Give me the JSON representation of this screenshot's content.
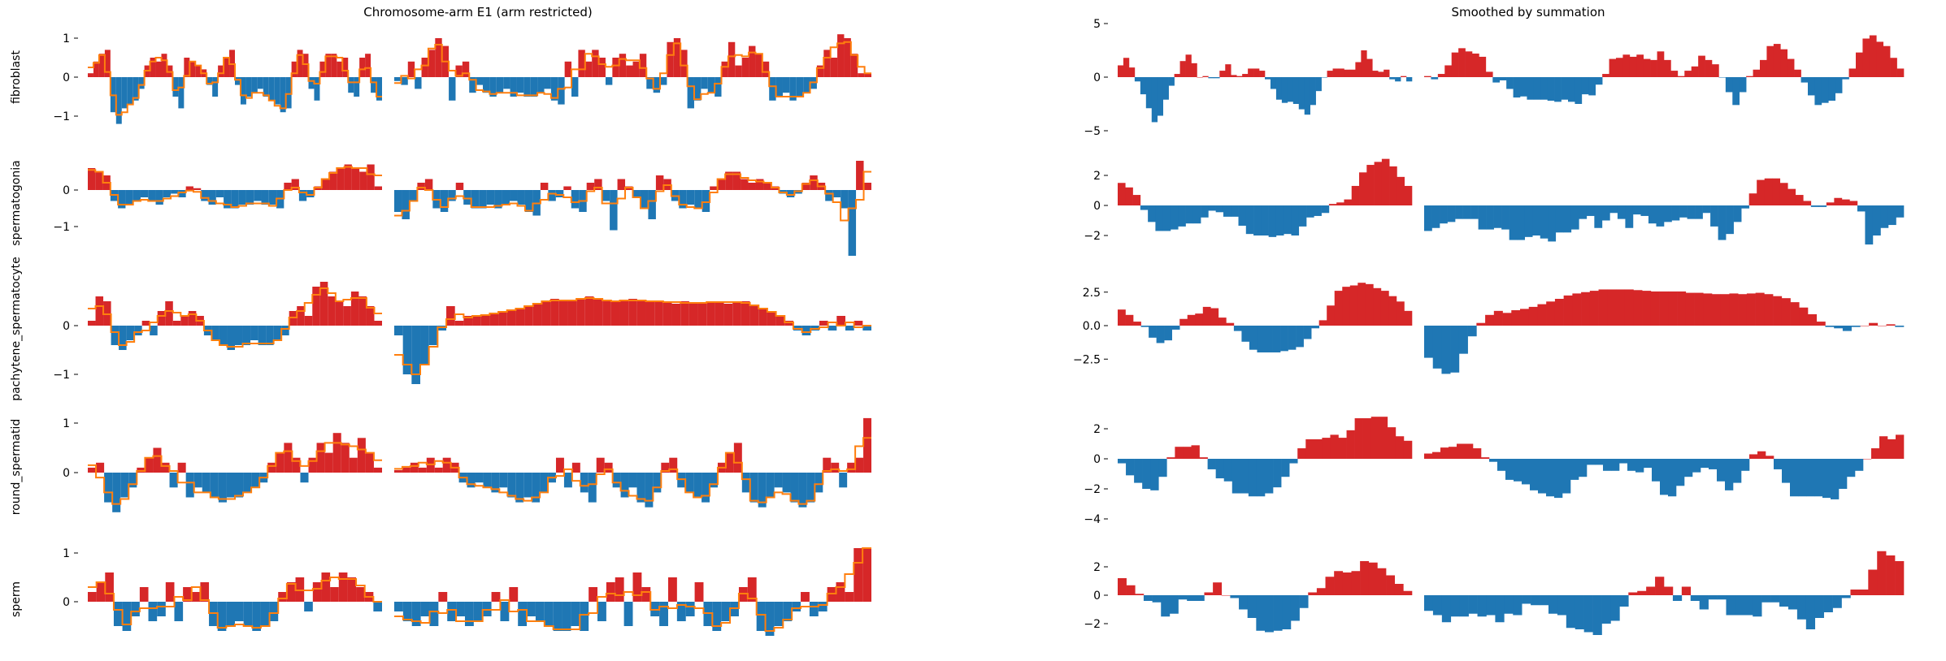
{
  "chart_data": {
    "type": "bar",
    "colors": {
      "positive": "#d62728",
      "negative": "#1f77b4",
      "rolling_mean": "#ff7f0e"
    },
    "panels": [
      {
        "title": "Chromosome-arm E1 (arm restricted)",
        "column": "left"
      },
      {
        "title": "Smoothed by summation",
        "column": "right",
        "smoothing_window": 5
      }
    ],
    "rows": [
      {
        "ylabel": "fibroblast",
        "left_ticks": [
          {
            "v": 1,
            "label": "1"
          },
          {
            "v": 0,
            "label": "0"
          },
          {
            "v": -1,
            "label": "−1"
          }
        ],
        "right_ticks": [
          {
            "v": 5,
            "label": "5"
          },
          {
            "v": 0,
            "label": "0"
          },
          {
            "v": -5,
            "label": "−5"
          }
        ],
        "arms": [
          [
            0.1,
            0.4,
            0.6,
            0.7,
            -0.9,
            -1.2,
            -0.8,
            -0.7,
            -0.6,
            -0.3,
            0.3,
            0.5,
            0.4,
            0.6,
            0.3,
            -0.5,
            -0.8,
            0.5,
            0.4,
            0.3,
            0.2,
            -0.2,
            -0.5,
            0.3,
            0.5,
            0.7,
            -0.2,
            -0.7,
            -0.5,
            -0.4,
            -0.3,
            -0.5,
            -0.6,
            -0.7,
            -0.9,
            -0.8,
            0.4,
            0.7,
            0.6,
            -0.3,
            -0.6,
            0.4,
            0.6,
            0.6,
            0.4,
            0.5,
            -0.4,
            -0.5,
            0.5,
            0.6,
            -0.4,
            -0.6
          ],
          [
            -0.1,
            -0.2,
            0.4,
            -0.3,
            0.5,
            0.7,
            1.0,
            0.8,
            -0.6,
            0.3,
            0.4,
            -0.4,
            -0.2,
            -0.4,
            -0.5,
            -0.4,
            -0.3,
            -0.5,
            -0.4,
            -0.5,
            -0.5,
            -0.4,
            -0.3,
            -0.6,
            -0.7,
            0.4,
            -0.5,
            0.7,
            0.4,
            0.7,
            0.5,
            -0.2,
            0.5,
            0.6,
            0.3,
            0.4,
            0.6,
            -0.3,
            -0.4,
            -0.2,
            0.9,
            1.0,
            0.7,
            -0.8,
            -0.6,
            -0.3,
            -0.4,
            -0.5,
            0.4,
            0.9,
            0.3,
            0.5,
            0.8,
            0.6,
            0.4,
            -0.6,
            -0.5,
            -0.4,
            -0.6,
            -0.5,
            -0.4,
            -0.3,
            0.3,
            0.7,
            0.5,
            1.1,
            1.0,
            0.6,
            0.1,
            0.1
          ]
        ]
      },
      {
        "ylabel": "spermatogonia",
        "left_ticks": [
          {
            "v": 0,
            "label": "0"
          },
          {
            "v": -1,
            "label": "−1"
          }
        ],
        "right_ticks": [
          {
            "v": 2,
            "label": "2"
          },
          {
            "v": 0,
            "label": "0"
          },
          {
            "v": -2,
            "label": "−2"
          }
        ],
        "arms": [
          [
            0.6,
            0.5,
            0.4,
            -0.3,
            -0.5,
            -0.4,
            -0.3,
            -0.2,
            -0.3,
            -0.4,
            -0.2,
            -0.1,
            -0.2,
            0.1,
            0.05,
            -0.3,
            -0.4,
            -0.2,
            -0.5,
            -0.5,
            -0.4,
            -0.4,
            -0.3,
            -0.4,
            -0.4,
            -0.5,
            0.2,
            0.3,
            -0.3,
            -0.2,
            0.1,
            0.3,
            0.5,
            0.6,
            0.7,
            0.6,
            0.5,
            0.7,
            0.1
          ],
          [
            -0.6,
            -0.8,
            -0.3,
            0.2,
            0.3,
            -0.5,
            -0.6,
            -0.3,
            0.2,
            -0.4,
            -0.5,
            -0.5,
            -0.4,
            -0.5,
            -0.4,
            -0.3,
            -0.4,
            -0.6,
            -0.7,
            0.2,
            -0.3,
            -0.2,
            0.1,
            -0.5,
            -0.6,
            0.2,
            0.3,
            -0.3,
            -1.1,
            0.3,
            0.1,
            -0.2,
            -0.5,
            -0.8,
            0.4,
            0.3,
            -0.3,
            -0.5,
            -0.4,
            -0.5,
            -0.6,
            0.1,
            0.3,
            0.5,
            0.5,
            0.3,
            0.2,
            0.3,
            0.2,
            0.1,
            -0.1,
            -0.2,
            -0.1,
            0.2,
            0.4,
            0.2,
            -0.3,
            -0.2,
            -0.5,
            -1.8,
            0.8,
            0.2
          ]
        ]
      },
      {
        "ylabel": "pachytene_spermatocyte",
        "left_ticks": [
          {
            "v": 0,
            "label": "0"
          },
          {
            "v": -1,
            "label": "−1"
          }
        ],
        "right_ticks": [
          {
            "v": 2.5,
            "label": "2.5"
          },
          {
            "v": 0,
            "label": "0.0"
          },
          {
            "v": -2.5,
            "label": "−2.5"
          }
        ],
        "arms": [
          [
            0.1,
            0.6,
            0.5,
            -0.4,
            -0.5,
            -0.3,
            -0.2,
            0.1,
            -0.2,
            0.3,
            0.5,
            0.1,
            0.2,
            0.3,
            0.2,
            -0.2,
            -0.3,
            -0.4,
            -0.5,
            -0.4,
            -0.4,
            -0.3,
            -0.4,
            -0.4,
            -0.3,
            -0.2,
            0.3,
            0.4,
            0.2,
            0.8,
            0.9,
            0.6,
            0.5,
            0.4,
            0.7,
            0.6,
            0.4,
            0.1
          ],
          [
            -0.2,
            -1.0,
            -1.2,
            -0.8,
            -0.4,
            -0.1,
            0.4,
            0.1,
            0.2,
            0.2,
            0.2,
            0.25,
            0.3,
            0.3,
            0.35,
            0.4,
            0.45,
            0.5,
            0.55,
            0.5,
            0.5,
            0.55,
            0.6,
            0.55,
            0.5,
            0.5,
            0.5,
            0.55,
            0.5,
            0.5,
            0.5,
            0.5,
            0.45,
            0.5,
            0.45,
            0.45,
            0.5,
            0.5,
            0.45,
            0.5,
            0.5,
            0.4,
            0.35,
            0.3,
            0.2,
            0.1,
            -0.1,
            -0.2,
            -0.1,
            0.1,
            -0.1,
            0.2,
            -0.1,
            0.1,
            -0.1
          ]
        ]
      },
      {
        "ylabel": "round_spermatid",
        "left_ticks": [
          {
            "v": 1,
            "label": "1"
          },
          {
            "v": 0,
            "label": "0"
          }
        ],
        "right_ticks": [
          {
            "v": 2,
            "label": "2"
          },
          {
            "v": 0,
            "label": "0"
          },
          {
            "v": -2,
            "label": "−2"
          },
          {
            "v": -4,
            "label": "−4"
          }
        ],
        "arms": [
          [
            0.1,
            0.2,
            -0.6,
            -0.8,
            -0.5,
            -0.3,
            0.1,
            0.3,
            0.5,
            0.2,
            -0.3,
            0.2,
            -0.5,
            -0.3,
            -0.4,
            -0.5,
            -0.6,
            -0.5,
            -0.5,
            -0.4,
            -0.3,
            -0.2,
            0.2,
            0.4,
            0.6,
            0.3,
            -0.2,
            0.3,
            0.6,
            0.4,
            0.8,
            0.6,
            0.3,
            0.7,
            0.4,
            0.1
          ],
          [
            0.05,
            0.1,
            0.2,
            0.1,
            0.3,
            0.1,
            0.3,
            0.2,
            -0.2,
            -0.3,
            -0.2,
            -0.3,
            -0.4,
            -0.3,
            -0.5,
            -0.6,
            -0.5,
            -0.6,
            -0.4,
            -0.2,
            0.3,
            -0.3,
            0.2,
            -0.4,
            -0.6,
            0.3,
            0.2,
            -0.3,
            -0.5,
            -0.3,
            -0.6,
            -0.7,
            -0.4,
            0.2,
            0.3,
            -0.3,
            -0.4,
            -0.5,
            -0.6,
            -0.3,
            0.2,
            0.4,
            0.6,
            -0.4,
            -0.6,
            -0.7,
            -0.5,
            -0.3,
            -0.4,
            -0.6,
            -0.7,
            -0.6,
            -0.4,
            0.3,
            0.2,
            -0.3,
            0.2,
            0.3,
            1.1
          ]
        ]
      },
      {
        "ylabel": "sperm",
        "left_ticks": [
          {
            "v": 1,
            "label": "1"
          },
          {
            "v": 0,
            "label": "0"
          }
        ],
        "right_ticks": [
          {
            "v": 2,
            "label": "2"
          },
          {
            "v": 0,
            "label": "0"
          },
          {
            "v": -2,
            "label": "−2"
          }
        ],
        "arms": [
          [
            0.2,
            0.4,
            0.6,
            -0.5,
            -0.6,
            -0.3,
            0.3,
            -0.4,
            -0.3,
            0.4,
            -0.4,
            0.3,
            0.2,
            0.4,
            -0.5,
            -0.6,
            -0.5,
            -0.4,
            -0.5,
            -0.6,
            -0.5,
            -0.4,
            0.2,
            0.4,
            0.5,
            -0.2,
            0.4,
            0.6,
            0.3,
            0.6,
            0.5,
            0.3,
            0.2,
            -0.2
          ],
          [
            -0.2,
            -0.4,
            -0.5,
            -0.3,
            -0.5,
            0.2,
            -0.4,
            -0.3,
            -0.5,
            -0.4,
            -0.3,
            0.2,
            -0.4,
            0.3,
            -0.5,
            -0.3,
            -0.4,
            -0.5,
            -0.6,
            -0.6,
            -0.5,
            -0.6,
            0.3,
            -0.4,
            0.4,
            0.5,
            -0.5,
            0.6,
            0.3,
            -0.3,
            -0.5,
            0.5,
            -0.4,
            -0.3,
            0.4,
            -0.5,
            -0.6,
            -0.4,
            -0.3,
            0.3,
            0.5,
            -0.6,
            -0.7,
            -0.5,
            -0.4,
            -0.2,
            0.2,
            -0.3,
            -0.2,
            0.3,
            0.4,
            0.2,
            1.1,
            1.1
          ]
        ]
      }
    ]
  }
}
